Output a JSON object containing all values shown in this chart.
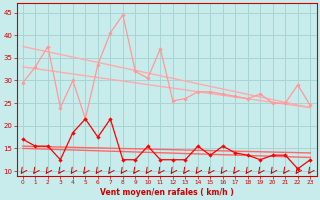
{
  "background_color": "#c8ecec",
  "grid_color": "#a8d4d4",
  "x_labels": [
    "0",
    "1",
    "2",
    "3",
    "4",
    "5",
    "6",
    "7",
    "8",
    "9",
    "10",
    "11",
    "12",
    "13",
    "14",
    "15",
    "16",
    "17",
    "18",
    "19",
    "20",
    "21",
    "22",
    "23"
  ],
  "xlabel": "Vent moyen/en rafales ( km/h )",
  "ylim": [
    9,
    47
  ],
  "yticks": [
    10,
    15,
    20,
    25,
    30,
    35,
    40,
    45
  ],
  "rafales_color": "#ff9999",
  "moyen_color": "#ff0000",
  "trend_color1": "#ffaaaa",
  "trend_color2": "#ff6666",
  "arrow_color": "#cc0000",
  "tick_color": "#cc0000",
  "label_color": "#cc0000",
  "rafales_y": [
    29.5,
    33.0,
    37.5,
    24.0,
    30.0,
    21.5,
    33.5,
    40.5,
    44.5,
    32.0,
    30.5,
    37.0,
    25.5,
    26.0,
    27.5,
    27.5,
    27.0,
    26.5,
    26.0,
    27.0,
    25.0,
    25.0,
    29.0,
    24.5
  ],
  "moyen_y": [
    17.0,
    15.5,
    15.5,
    12.5,
    18.5,
    21.5,
    17.5,
    21.5,
    12.5,
    12.5,
    15.5,
    12.5,
    12.5,
    12.5,
    15.5,
    13.5,
    15.5,
    14.0,
    13.5,
    12.5,
    13.5,
    13.5,
    10.5,
    12.5
  ],
  "trend_rafales_upper": [
    37.5,
    24.0
  ],
  "trend_rafales_lower": [
    33.0,
    24.0
  ],
  "trend_moyen_upper": [
    15.5,
    14.0
  ],
  "trend_moyen_lower": [
    15.0,
    13.0
  ]
}
